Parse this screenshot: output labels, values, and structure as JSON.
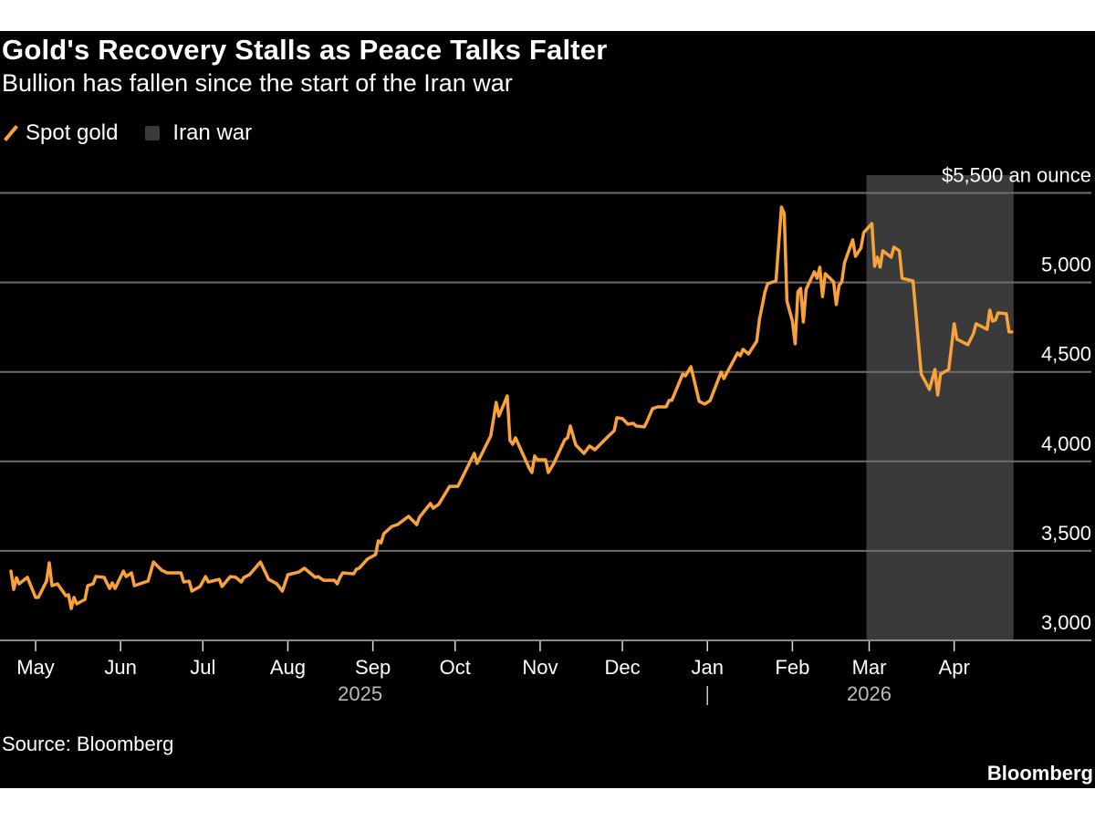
{
  "title": "Gold's Recovery Stalls as Peace Talks Falter",
  "subtitle": "Bullion has fallen since the start of the Iran war",
  "legend": [
    {
      "label": "Spot gold",
      "color": "#f9a13a",
      "icon": "line-swatch-icon"
    },
    {
      "label": "Iran war",
      "color": "#3a3a3a",
      "icon": "square-swatch-icon"
    }
  ],
  "source": "Source: Bloomberg",
  "logo": "Bloomberg",
  "chart_data": {
    "type": "line",
    "title": "Gold's Recovery Stalls as Peace Talks Falter",
    "ylabel": "$ an ounce",
    "ylim": [
      3000,
      5500
    ],
    "y_ticks": [
      3000,
      3500,
      4000,
      4500,
      5000,
      5500
    ],
    "y_tick_labels": [
      "3,000",
      "3,500",
      "4,000",
      "4,500",
      "5,000",
      "$5,500 an ounce"
    ],
    "y_axis_position": "right",
    "grid": true,
    "legend_position": "top-left",
    "x_ticks": [
      {
        "date": "2025-05-01",
        "label": "May"
      },
      {
        "date": "2025-06-01",
        "label": "Jun"
      },
      {
        "date": "2025-07-01",
        "label": "Jul"
      },
      {
        "date": "2025-08-01",
        "label": "Aug"
      },
      {
        "date": "2025-09-01",
        "label": "Sep"
      },
      {
        "date": "2025-10-01",
        "label": "Oct"
      },
      {
        "date": "2025-11-01",
        "label": "Nov"
      },
      {
        "date": "2025-12-01",
        "label": "Dec"
      },
      {
        "date": "2026-01-01",
        "label": "Jan"
      },
      {
        "date": "2026-02-01",
        "label": "Feb"
      },
      {
        "date": "2026-03-01",
        "label": "Mar"
      },
      {
        "date": "2026-04-01",
        "label": "Apr"
      }
    ],
    "x_year_labels": [
      {
        "label": "2025",
        "center": "2025-09-01"
      },
      {
        "label": "2026",
        "center": "2026-03-01"
      }
    ],
    "year_divider": "2026-01-01",
    "shaded_regions": [
      {
        "name": "Iran war",
        "start": "2026-02-28",
        "end": "2026-04-22",
        "color": "#3a3a3a"
      }
    ],
    "series": [
      {
        "name": "Spot gold",
        "color": "#f9a13a",
        "points": [
          [
            "2025-04-22",
            3387
          ],
          [
            "2025-04-23",
            3285
          ],
          [
            "2025-04-24",
            3350
          ],
          [
            "2025-04-25",
            3316
          ],
          [
            "2025-04-28",
            3352
          ],
          [
            "2025-05-01",
            3240
          ],
          [
            "2025-05-02",
            3240
          ],
          [
            "2025-05-05",
            3331
          ],
          [
            "2025-05-06",
            3433
          ],
          [
            "2025-05-07",
            3306
          ],
          [
            "2025-05-09",
            3316
          ],
          [
            "2025-05-12",
            3250
          ],
          [
            "2025-05-13",
            3255
          ],
          [
            "2025-05-14",
            3178
          ],
          [
            "2025-05-15",
            3240
          ],
          [
            "2025-05-16",
            3204
          ],
          [
            "2025-05-19",
            3229
          ],
          [
            "2025-05-20",
            3306
          ],
          [
            "2025-05-22",
            3316
          ],
          [
            "2025-05-23",
            3357
          ],
          [
            "2025-05-26",
            3352
          ],
          [
            "2025-05-28",
            3290
          ],
          [
            "2025-05-29",
            3321
          ],
          [
            "2025-05-30",
            3290
          ],
          [
            "2025-06-02",
            3387
          ],
          [
            "2025-06-03",
            3357
          ],
          [
            "2025-06-05",
            3377
          ],
          [
            "2025-06-06",
            3306
          ],
          [
            "2025-06-10",
            3326
          ],
          [
            "2025-06-11",
            3331
          ],
          [
            "2025-06-13",
            3438
          ],
          [
            "2025-06-16",
            3392
          ],
          [
            "2025-06-18",
            3377
          ],
          [
            "2025-06-23",
            3377
          ],
          [
            "2025-06-24",
            3326
          ],
          [
            "2025-06-26",
            3331
          ],
          [
            "2025-06-27",
            3275
          ],
          [
            "2025-06-30",
            3301
          ],
          [
            "2025-07-02",
            3357
          ],
          [
            "2025-07-03",
            3326
          ],
          [
            "2025-07-07",
            3341
          ],
          [
            "2025-07-08",
            3301
          ],
          [
            "2025-07-11",
            3357
          ],
          [
            "2025-07-13",
            3352
          ],
          [
            "2025-07-15",
            3326
          ],
          [
            "2025-07-16",
            3352
          ],
          [
            "2025-07-18",
            3367
          ],
          [
            "2025-07-22",
            3438
          ],
          [
            "2025-07-25",
            3341
          ],
          [
            "2025-07-28",
            3316
          ],
          [
            "2025-07-30",
            3275
          ],
          [
            "2025-08-01",
            3367
          ],
          [
            "2025-08-05",
            3382
          ],
          [
            "2025-08-07",
            3403
          ],
          [
            "2025-08-11",
            3352
          ],
          [
            "2025-08-12",
            3357
          ],
          [
            "2025-08-14",
            3336
          ],
          [
            "2025-08-18",
            3336
          ],
          [
            "2025-08-19",
            3316
          ],
          [
            "2025-08-20",
            3352
          ],
          [
            "2025-08-21",
            3377
          ],
          [
            "2025-08-25",
            3372
          ],
          [
            "2025-08-26",
            3398
          ],
          [
            "2025-08-27",
            3403
          ],
          [
            "2025-08-30",
            3454
          ],
          [
            "2025-09-02",
            3479
          ],
          [
            "2025-09-03",
            3556
          ],
          [
            "2025-09-04",
            3545
          ],
          [
            "2025-09-05",
            3596
          ],
          [
            "2025-09-08",
            3637
          ],
          [
            "2025-09-10",
            3647
          ],
          [
            "2025-09-14",
            3693
          ],
          [
            "2025-09-17",
            3647
          ],
          [
            "2025-09-18",
            3688
          ],
          [
            "2025-09-22",
            3765
          ],
          [
            "2025-09-23",
            3739
          ],
          [
            "2025-09-25",
            3760
          ],
          [
            "2025-09-29",
            3861
          ],
          [
            "2025-10-02",
            3861
          ],
          [
            "2025-10-08",
            4045
          ],
          [
            "2025-10-09",
            3989
          ],
          [
            "2025-10-14",
            4142
          ],
          [
            "2025-10-16",
            4330
          ],
          [
            "2025-10-17",
            4254
          ],
          [
            "2025-10-20",
            4366
          ],
          [
            "2025-10-21",
            4116
          ],
          [
            "2025-10-22",
            4096
          ],
          [
            "2025-10-23",
            4132
          ],
          [
            "2025-10-28",
            3963
          ],
          [
            "2025-10-29",
            3938
          ],
          [
            "2025-10-30",
            4030
          ],
          [
            "2025-10-31",
            4009
          ],
          [
            "2025-11-03",
            4009
          ],
          [
            "2025-11-04",
            3938
          ],
          [
            "2025-11-06",
            3989
          ],
          [
            "2025-11-10",
            4122
          ],
          [
            "2025-11-11",
            4132
          ],
          [
            "2025-11-12",
            4198
          ],
          [
            "2025-11-14",
            4091
          ],
          [
            "2025-11-17",
            4045
          ],
          [
            "2025-11-19",
            4086
          ],
          [
            "2025-11-21",
            4065
          ],
          [
            "2025-11-26",
            4142
          ],
          [
            "2025-11-28",
            4172
          ],
          [
            "2025-11-29",
            4244
          ],
          [
            "2025-12-01",
            4239
          ],
          [
            "2025-12-03",
            4208
          ],
          [
            "2025-12-05",
            4213
          ],
          [
            "2025-12-06",
            4198
          ],
          [
            "2025-12-09",
            4193
          ],
          [
            "2025-12-10",
            4223
          ],
          [
            "2025-12-12",
            4295
          ],
          [
            "2025-12-14",
            4305
          ],
          [
            "2025-12-17",
            4305
          ],
          [
            "2025-12-18",
            4341
          ],
          [
            "2025-12-19",
            4341
          ],
          [
            "2025-12-23",
            4488
          ],
          [
            "2025-12-24",
            4478
          ],
          [
            "2025-12-26",
            4529
          ],
          [
            "2025-12-29",
            4336
          ],
          [
            "2025-12-31",
            4320
          ],
          [
            "2026-01-02",
            4340
          ],
          [
            "2026-01-06",
            4499
          ],
          [
            "2026-01-07",
            4463
          ],
          [
            "2026-01-12",
            4606
          ],
          [
            "2026-01-13",
            4590
          ],
          [
            "2026-01-14",
            4626
          ],
          [
            "2026-01-16",
            4600
          ],
          [
            "2026-01-19",
            4672
          ],
          [
            "2026-01-20",
            4794
          ],
          [
            "2026-01-22",
            4947
          ],
          [
            "2026-01-23",
            4993
          ],
          [
            "2026-01-26",
            5008
          ],
          [
            "2026-01-28",
            5421
          ],
          [
            "2026-01-29",
            5385
          ],
          [
            "2026-01-30",
            4896
          ],
          [
            "2026-02-01",
            4784
          ],
          [
            "2026-02-02",
            4657
          ],
          [
            "2026-02-03",
            4947
          ],
          [
            "2026-02-04",
            4967
          ],
          [
            "2026-02-05",
            4779
          ],
          [
            "2026-02-06",
            4962
          ],
          [
            "2026-02-09",
            5059
          ],
          [
            "2026-02-10",
            5023
          ],
          [
            "2026-02-11",
            5085
          ],
          [
            "2026-02-12",
            4921
          ],
          [
            "2026-02-13",
            5049
          ],
          [
            "2026-02-16",
            5003
          ],
          [
            "2026-02-17",
            4876
          ],
          [
            "2026-02-18",
            4983
          ],
          [
            "2026-02-19",
            5003
          ],
          [
            "2026-02-20",
            5110
          ],
          [
            "2026-02-23",
            5238
          ],
          [
            "2026-02-24",
            5146
          ],
          [
            "2026-02-26",
            5192
          ],
          [
            "2026-02-27",
            5278
          ],
          [
            "2026-03-02",
            5329
          ],
          [
            "2026-03-03",
            5090
          ],
          [
            "2026-03-04",
            5141
          ],
          [
            "2026-03-05",
            5085
          ],
          [
            "2026-03-06",
            5177
          ],
          [
            "2026-03-09",
            5141
          ],
          [
            "2026-03-10",
            5197
          ],
          [
            "2026-03-12",
            5177
          ],
          [
            "2026-03-13",
            5023
          ],
          [
            "2026-03-17",
            5008
          ],
          [
            "2026-03-20",
            4488
          ],
          [
            "2026-03-23",
            4402
          ],
          [
            "2026-03-25",
            4514
          ],
          [
            "2026-03-26",
            4371
          ],
          [
            "2026-03-27",
            4488
          ],
          [
            "2026-03-30",
            4514
          ],
          [
            "2026-04-01",
            4769
          ],
          [
            "2026-04-02",
            4683
          ],
          [
            "2026-04-06",
            4652
          ],
          [
            "2026-04-08",
            4713
          ],
          [
            "2026-04-09",
            4769
          ],
          [
            "2026-04-13",
            4738
          ],
          [
            "2026-04-14",
            4845
          ],
          [
            "2026-04-15",
            4784
          ],
          [
            "2026-04-16",
            4789
          ],
          [
            "2026-04-17",
            4830
          ],
          [
            "2026-04-20",
            4825
          ],
          [
            "2026-04-21",
            4723
          ],
          [
            "2026-04-22",
            4723
          ]
        ]
      }
    ]
  }
}
